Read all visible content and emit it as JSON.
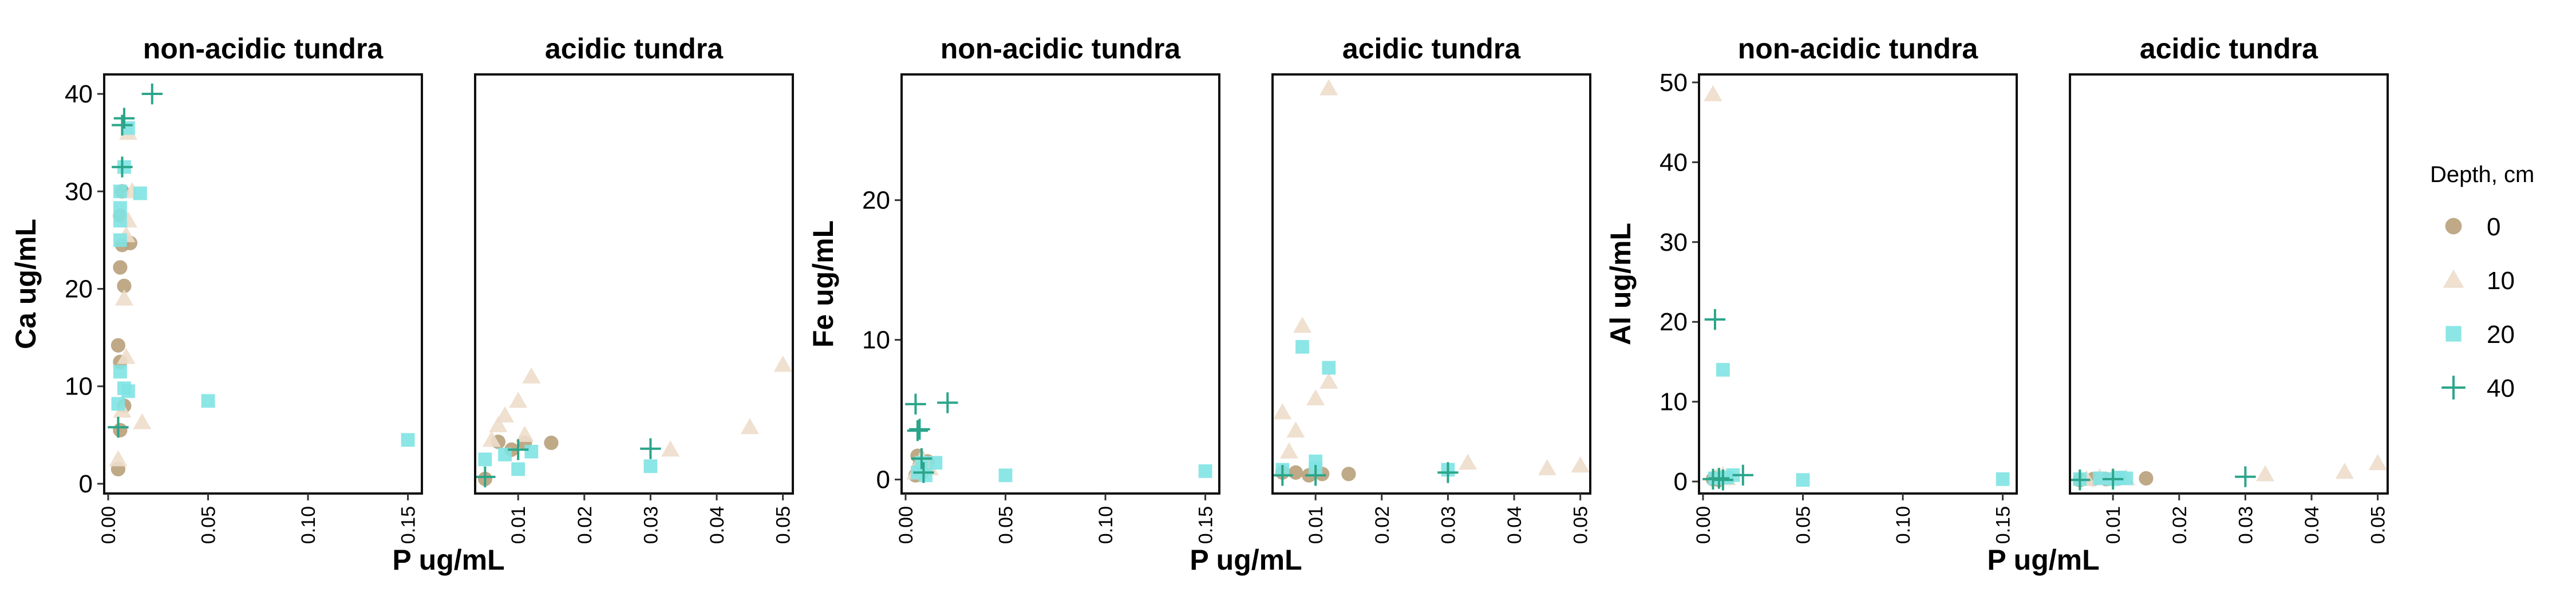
{
  "chart_data": [
    {
      "type": "scatter",
      "ylabel": "Ca ug/mL",
      "xlabel": "P ug/mL",
      "ylim": [
        -1,
        42
      ],
      "yticks": [
        0,
        10,
        20,
        30,
        40
      ],
      "facets": [
        {
          "title": "non-acidic tundra",
          "xlim": [
            -0.002,
            0.157
          ],
          "xticks": [
            0.0,
            0.05,
            0.1,
            0.15
          ],
          "xtick_labels": [
            "0.00",
            "0.05",
            "0.10",
            "0.15"
          ],
          "series": [
            {
              "name": "0",
              "points": [
                [
                  0.005,
                  1.5
                ],
                [
                  0.006,
                  5.5
                ],
                [
                  0.006,
                  12.5
                ],
                [
                  0.005,
                  14.2
                ],
                [
                  0.006,
                  22.2
                ],
                [
                  0.007,
                  24.5
                ],
                [
                  0.008,
                  20.3
                ],
                [
                  0.006,
                  27.5
                ],
                [
                  0.007,
                  30.0
                ],
                [
                  0.008,
                  8.0
                ],
                [
                  0.011,
                  24.7
                ]
              ]
            },
            {
              "name": "10",
              "points": [
                [
                  0.005,
                  2.5
                ],
                [
                  0.007,
                  7.5
                ],
                [
                  0.009,
                  13.0
                ],
                [
                  0.008,
                  19.0
                ],
                [
                  0.009,
                  25.5
                ],
                [
                  0.01,
                  27.0
                ],
                [
                  0.012,
                  30.0
                ],
                [
                  0.01,
                  36.0
                ],
                [
                  0.017,
                  6.3
                ]
              ]
            },
            {
              "name": "20",
              "points": [
                [
                  0.005,
                  8.2
                ],
                [
                  0.006,
                  11.5
                ],
                [
                  0.008,
                  9.8
                ],
                [
                  0.01,
                  9.5
                ],
                [
                  0.006,
                  25.0
                ],
                [
                  0.006,
                  27.0
                ],
                [
                  0.006,
                  28.3
                ],
                [
                  0.006,
                  30.0
                ],
                [
                  0.008,
                  32.5
                ],
                [
                  0.01,
                  36.5
                ],
                [
                  0.016,
                  29.8
                ],
                [
                  0.05,
                  8.5
                ],
                [
                  0.15,
                  4.5
                ]
              ]
            },
            {
              "name": "40",
              "points": [
                [
                  0.005,
                  5.8
                ],
                [
                  0.007,
                  32.5
                ],
                [
                  0.007,
                  36.8
                ],
                [
                  0.008,
                  37.5
                ],
                [
                  0.022,
                  40.0
                ]
              ]
            }
          ]
        },
        {
          "title": "acidic tundra",
          "xlim": [
            0.0035,
            0.0515
          ],
          "xticks": [
            0.01,
            0.02,
            0.03,
            0.04,
            0.05
          ],
          "xtick_labels": [
            "0.01",
            "0.02",
            "0.03",
            "0.04",
            "0.05"
          ],
          "series": [
            {
              "name": "0",
              "points": [
                [
                  0.005,
                  0.5
                ],
                [
                  0.007,
                  4.3
                ],
                [
                  0.009,
                  3.5
                ],
                [
                  0.011,
                  4.2
                ],
                [
                  0.015,
                  4.2
                ]
              ]
            },
            {
              "name": "10",
              "points": [
                [
                  0.006,
                  4.5
                ],
                [
                  0.007,
                  6.0
                ],
                [
                  0.008,
                  7.0
                ],
                [
                  0.01,
                  8.5
                ],
                [
                  0.011,
                  5.0
                ],
                [
                  0.012,
                  11.0
                ],
                [
                  0.033,
                  3.5
                ],
                [
                  0.045,
                  5.8
                ],
                [
                  0.05,
                  12.2
                ]
              ]
            },
            {
              "name": "20",
              "points": [
                [
                  0.005,
                  2.5
                ],
                [
                  0.008,
                  3.0
                ],
                [
                  0.01,
                  1.5
                ],
                [
                  0.012,
                  3.3
                ],
                [
                  0.03,
                  1.8
                ]
              ]
            },
            {
              "name": "40",
              "points": [
                [
                  0.005,
                  0.7
                ],
                [
                  0.01,
                  3.5
                ],
                [
                  0.03,
                  3.6
                ]
              ]
            }
          ]
        }
      ]
    },
    {
      "type": "scatter",
      "ylabel": "Fe ug/mL",
      "xlabel": "P ug/mL",
      "ylim": [
        -1,
        29
      ],
      "yticks": [
        0,
        10,
        20
      ],
      "facets": [
        {
          "title": "non-acidic tundra",
          "xlim": [
            -0.002,
            0.157
          ],
          "xticks": [
            0.0,
            0.05,
            0.1,
            0.15
          ],
          "xtick_labels": [
            "0.00",
            "0.05",
            "0.10",
            "0.15"
          ],
          "series": [
            {
              "name": "0",
              "points": [
                [
                  0.005,
                  0.3
                ],
                [
                  0.006,
                  1.7
                ],
                [
                  0.007,
                  1.0
                ],
                [
                  0.008,
                  0.5
                ],
                [
                  0.011,
                  1.3
                ]
              ]
            },
            {
              "name": "10",
              "points": [
                [
                  0.005,
                  0.5
                ],
                [
                  0.008,
                  1.5
                ],
                [
                  0.01,
                  1.0
                ],
                [
                  0.012,
                  0.8
                ]
              ]
            },
            {
              "name": "20",
              "points": [
                [
                  0.006,
                  0.5
                ],
                [
                  0.008,
                  1.2
                ],
                [
                  0.01,
                  0.3
                ],
                [
                  0.015,
                  1.2
                ],
                [
                  0.05,
                  0.3
                ],
                [
                  0.15,
                  0.6
                ]
              ]
            },
            {
              "name": "40",
              "points": [
                [
                  0.005,
                  5.4
                ],
                [
                  0.006,
                  3.5
                ],
                [
                  0.007,
                  3.6
                ],
                [
                  0.008,
                  1.5
                ],
                [
                  0.009,
                  0.5
                ],
                [
                  0.021,
                  5.5
                ]
              ]
            }
          ]
        },
        {
          "title": "acidic tundra",
          "xlim": [
            0.0035,
            0.0515
          ],
          "xticks": [
            0.01,
            0.02,
            0.03,
            0.04,
            0.05
          ],
          "xtick_labels": [
            "0.01",
            "0.02",
            "0.03",
            "0.04",
            "0.05"
          ],
          "series": [
            {
              "name": "0",
              "points": [
                [
                  0.005,
                  0.5
                ],
                [
                  0.007,
                  0.5
                ],
                [
                  0.009,
                  0.3
                ],
                [
                  0.011,
                  0.4
                ],
                [
                  0.015,
                  0.4
                ]
              ]
            },
            {
              "name": "10",
              "points": [
                [
                  0.005,
                  4.8
                ],
                [
                  0.006,
                  2.0
                ],
                [
                  0.007,
                  3.5
                ],
                [
                  0.008,
                  11.0
                ],
                [
                  0.01,
                  5.8
                ],
                [
                  0.012,
                  7.0
                ],
                [
                  0.012,
                  28.0
                ],
                [
                  0.033,
                  1.2
                ],
                [
                  0.045,
                  0.8
                ],
                [
                  0.05,
                  1.0
                ]
              ]
            },
            {
              "name": "20",
              "points": [
                [
                  0.005,
                  0.7
                ],
                [
                  0.008,
                  9.5
                ],
                [
                  0.01,
                  1.3
                ],
                [
                  0.01,
                  0.8
                ],
                [
                  0.012,
                  8.0
                ],
                [
                  0.03,
                  0.7
                ]
              ]
            },
            {
              "name": "40",
              "points": [
                [
                  0.005,
                  0.3
                ],
                [
                  0.01,
                  0.3
                ],
                [
                  0.03,
                  0.5
                ]
              ]
            }
          ]
        }
      ]
    },
    {
      "type": "scatter",
      "ylabel": "Al ug/mL",
      "xlabel": "P ug/mL",
      "ylim": [
        -1.5,
        51
      ],
      "yticks": [
        0,
        10,
        20,
        30,
        40,
        50
      ],
      "facets": [
        {
          "title": "non-acidic tundra",
          "xlim": [
            -0.002,
            0.157
          ],
          "xticks": [
            0.0,
            0.05,
            0.1,
            0.15
          ],
          "xtick_labels": [
            "0.00",
            "0.05",
            "0.10",
            "0.15"
          ],
          "series": [
            {
              "name": "0",
              "points": [
                [
                  0.005,
                  0.3
                ],
                [
                  0.007,
                  0.5
                ],
                [
                  0.008,
                  0.2
                ],
                [
                  0.009,
                  0.4
                ]
              ]
            },
            {
              "name": "10",
              "points": [
                [
                  0.005,
                  48.5
                ],
                [
                  0.007,
                  0.5
                ],
                [
                  0.01,
                  0.8
                ],
                [
                  0.012,
                  0.4
                ]
              ]
            },
            {
              "name": "20",
              "points": [
                [
                  0.006,
                  0.4
                ],
                [
                  0.01,
                  14.0
                ],
                [
                  0.012,
                  0.5
                ],
                [
                  0.015,
                  0.8
                ],
                [
                  0.05,
                  0.2
                ],
                [
                  0.15,
                  0.3
                ]
              ]
            },
            {
              "name": "40",
              "points": [
                [
                  0.005,
                  0.3
                ],
                [
                  0.006,
                  20.3
                ],
                [
                  0.008,
                  0.4
                ],
                [
                  0.01,
                  0.2
                ],
                [
                  0.02,
                  0.8
                ]
              ]
            }
          ]
        },
        {
          "title": "acidic tundra",
          "xlim": [
            0.0035,
            0.0515
          ],
          "xticks": [
            0.01,
            0.02,
            0.03,
            0.04,
            0.05
          ],
          "xtick_labels": [
            "0.01",
            "0.02",
            "0.03",
            "0.04",
            "0.05"
          ],
          "series": [
            {
              "name": "0",
              "points": [
                [
                  0.005,
                  0.2
                ],
                [
                  0.007,
                  0.3
                ],
                [
                  0.009,
                  0.3
                ],
                [
                  0.011,
                  0.4
                ],
                [
                  0.015,
                  0.4
                ]
              ]
            },
            {
              "name": "10",
              "points": [
                [
                  0.006,
                  0.3
                ],
                [
                  0.008,
                  0.5
                ],
                [
                  0.01,
                  0.6
                ],
                [
                  0.012,
                  0.4
                ],
                [
                  0.033,
                  0.9
                ],
                [
                  0.045,
                  1.2
                ],
                [
                  0.05,
                  2.3
                ]
              ]
            },
            {
              "name": "20",
              "points": [
                [
                  0.005,
                  0.3
                ],
                [
                  0.008,
                  0.4
                ],
                [
                  0.01,
                  0.3
                ],
                [
                  0.011,
                  0.5
                ],
                [
                  0.012,
                  0.4
                ]
              ]
            },
            {
              "name": "40",
              "points": [
                [
                  0.005,
                  0.2
                ],
                [
                  0.01,
                  0.3
                ],
                [
                  0.03,
                  0.6
                ]
              ]
            }
          ]
        }
      ]
    }
  ],
  "legend": {
    "title": "Depth, cm",
    "placement": "right",
    "entries": [
      {
        "label": "0",
        "shape": "circle",
        "color": "#B8A07A"
      },
      {
        "label": "10",
        "shape": "triangle",
        "color": "#EDDDCB"
      },
      {
        "label": "20",
        "shape": "square",
        "color": "#7FE3E3"
      },
      {
        "label": "40",
        "shape": "cross",
        "color": "#2BA58A"
      }
    ]
  }
}
